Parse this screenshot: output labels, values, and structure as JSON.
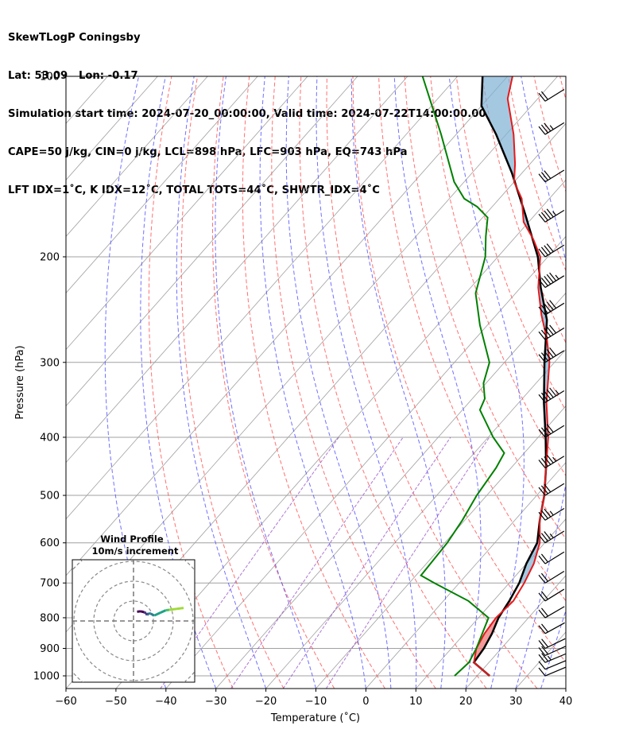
{
  "header": {
    "line1": "SkewTLogP Coningsby",
    "line2": "Lat: 53.09   Lon: -0.17",
    "line3": "Simulation start time: 2024-07-20_00:00:00, Valid time: 2024-07-22T14:00:00.00",
    "line4": "CAPE=50 j/kg, CIN=0 j/kg, LCL=898 hPa, LFC=903 hPa, EQ=743 hPa",
    "line5": "LFT IDX=1˚C, K IDX=12˚C, TOTAL TOTS=44˚C, SHWTR_IDX=4˚C"
  },
  "colors": {
    "temperature": "#e41a1c",
    "dewpoint": "#008000",
    "parcel": "#000000",
    "cape_fill": "#7fb0d4",
    "cin_fill": "#f08080",
    "dry_adiabat": "#ff4d4d",
    "moist_adiabat": "#4d4dff",
    "mixing_ratio": "#8b3fbf",
    "isotherm": "#a0a0a0"
  },
  "chart_data": {
    "type": "line",
    "title": "",
    "xlabel": "Temperature (˚C)",
    "ylabel": "Pressure (hPa)",
    "xlim": [
      -60,
      40
    ],
    "ylim": [
      1050,
      100
    ],
    "y_scale": "log",
    "skew": true,
    "x_ticks": [
      "−60",
      "−50",
      "−40",
      "−30",
      "−20",
      "−10",
      "0",
      "10",
      "20",
      "30",
      "40"
    ],
    "y_ticks": [
      "100",
      "200",
      "300",
      "400",
      "500",
      "600",
      "700",
      "800",
      "900",
      "1000"
    ],
    "series": [
      {
        "label": "temperature",
        "points": [
          [
            22.5,
            1000
          ],
          [
            17,
            950
          ],
          [
            15,
            900
          ],
          [
            14,
            850
          ],
          [
            13.5,
            800
          ],
          [
            14,
            750
          ],
          [
            13,
            700
          ],
          [
            11.5,
            650
          ],
          [
            9,
            600
          ],
          [
            5,
            550
          ],
          [
            1.5,
            500
          ],
          [
            -3,
            450
          ],
          [
            -8,
            400
          ],
          [
            -14.5,
            350
          ],
          [
            -21,
            300
          ],
          [
            -25.5,
            275
          ],
          [
            -31,
            250
          ],
          [
            -36.5,
            225
          ],
          [
            -41.5,
            200
          ],
          [
            -46,
            187
          ],
          [
            -51,
            175
          ],
          [
            -55.5,
            160
          ],
          [
            -60,
            150
          ],
          [
            -63,
            140
          ],
          [
            -68.5,
            125
          ],
          [
            -76,
            109
          ],
          [
            -79,
            100
          ]
        ]
      },
      {
        "label": "dewpoint",
        "points": [
          [
            15.5,
            1000
          ],
          [
            16,
            950
          ],
          [
            15,
            900
          ],
          [
            12,
            800
          ],
          [
            5,
            750
          ],
          [
            -5,
            700
          ],
          [
            -9,
            680
          ],
          [
            -9.5,
            600
          ],
          [
            -10.5,
            550
          ],
          [
            -12,
            500
          ],
          [
            -13,
            450
          ],
          [
            -14,
            425
          ],
          [
            -19,
            400
          ],
          [
            -26.5,
            360
          ],
          [
            -27.5,
            345
          ],
          [
            -30.5,
            325
          ],
          [
            -33,
            300
          ],
          [
            -41.5,
            260
          ],
          [
            -48,
            230
          ],
          [
            -52.5,
            200
          ],
          [
            -56,
            185
          ],
          [
            -59,
            172
          ],
          [
            -63,
            165
          ],
          [
            -67,
            160
          ],
          [
            -72,
            150
          ],
          [
            -83,
            125
          ],
          [
            -97,
            100
          ]
        ]
      },
      {
        "label": "parcel",
        "points": [
          [
            22.5,
            1000
          ],
          [
            17,
            950
          ],
          [
            16.5,
            900
          ],
          [
            15.5,
            850
          ],
          [
            14,
            800
          ],
          [
            13.2,
            750
          ],
          [
            12,
            700
          ],
          [
            10,
            650
          ],
          [
            8.5,
            600
          ],
          [
            5,
            550
          ],
          [
            1.5,
            500
          ],
          [
            -3,
            450
          ],
          [
            -8.5,
            400
          ],
          [
            -15,
            350
          ],
          [
            -22,
            300
          ],
          [
            -29,
            255
          ],
          [
            -36,
            225
          ],
          [
            -42,
            200
          ],
          [
            -52,
            170
          ],
          [
            -62,
            145
          ],
          [
            -72,
            125
          ],
          [
            -80,
            112
          ],
          [
            -85,
            100
          ]
        ]
      }
    ],
    "inset": {
      "title": "Wind Profile",
      "subtitle": "10m/s increment",
      "hodograph_u_v": [
        [
          1,
          0.6
        ],
        [
          2,
          0.7
        ],
        [
          3,
          0.5
        ],
        [
          3.5,
          0.3
        ],
        [
          3.8,
          -0.1
        ],
        [
          4.3,
          0.3
        ],
        [
          4.8,
          0.2
        ],
        [
          5.8,
          -0.2
        ],
        [
          7.5,
          0.4
        ],
        [
          9,
          0.9
        ],
        [
          10,
          1
        ],
        [
          12,
          1.2
        ],
        [
          14,
          1.4
        ]
      ]
    },
    "wind_barbs": [
      {
        "p": 1000,
        "spd_kt": 10,
        "dir": 280
      },
      {
        "p": 975,
        "spd_kt": 10,
        "dir": 280
      },
      {
        "p": 950,
        "spd_kt": 15,
        "dir": 280
      },
      {
        "p": 925,
        "spd_kt": 20,
        "dir": 275
      },
      {
        "p": 900,
        "spd_kt": 20,
        "dir": 270
      },
      {
        "p": 850,
        "spd_kt": 20,
        "dir": 260
      },
      {
        "p": 800,
        "spd_kt": 20,
        "dir": 255
      },
      {
        "p": 750,
        "spd_kt": 20,
        "dir": 250
      },
      {
        "p": 700,
        "spd_kt": 20,
        "dir": 250
      },
      {
        "p": 650,
        "spd_kt": 20,
        "dir": 250
      },
      {
        "p": 600,
        "spd_kt": 25,
        "dir": 250
      },
      {
        "p": 550,
        "spd_kt": 25,
        "dir": 250
      },
      {
        "p": 500,
        "spd_kt": 30,
        "dir": 250
      },
      {
        "p": 450,
        "spd_kt": 35,
        "dir": 250
      },
      {
        "p": 400,
        "spd_kt": 40,
        "dir": 250
      },
      {
        "p": 350,
        "spd_kt": 45,
        "dir": 250
      },
      {
        "p": 300,
        "spd_kt": 50,
        "dir": 250
      },
      {
        "p": 275,
        "spd_kt": 50,
        "dir": 250
      },
      {
        "p": 250,
        "spd_kt": 50,
        "dir": 250
      },
      {
        "p": 225,
        "spd_kt": 45,
        "dir": 250
      },
      {
        "p": 200,
        "spd_kt": 40,
        "dir": 250
      },
      {
        "p": 175,
        "spd_kt": 35,
        "dir": 250
      },
      {
        "p": 150,
        "spd_kt": 30,
        "dir": 250
      },
      {
        "p": 125,
        "spd_kt": 25,
        "dir": 250
      },
      {
        "p": 110,
        "spd_kt": 20,
        "dir": 250
      }
    ]
  }
}
